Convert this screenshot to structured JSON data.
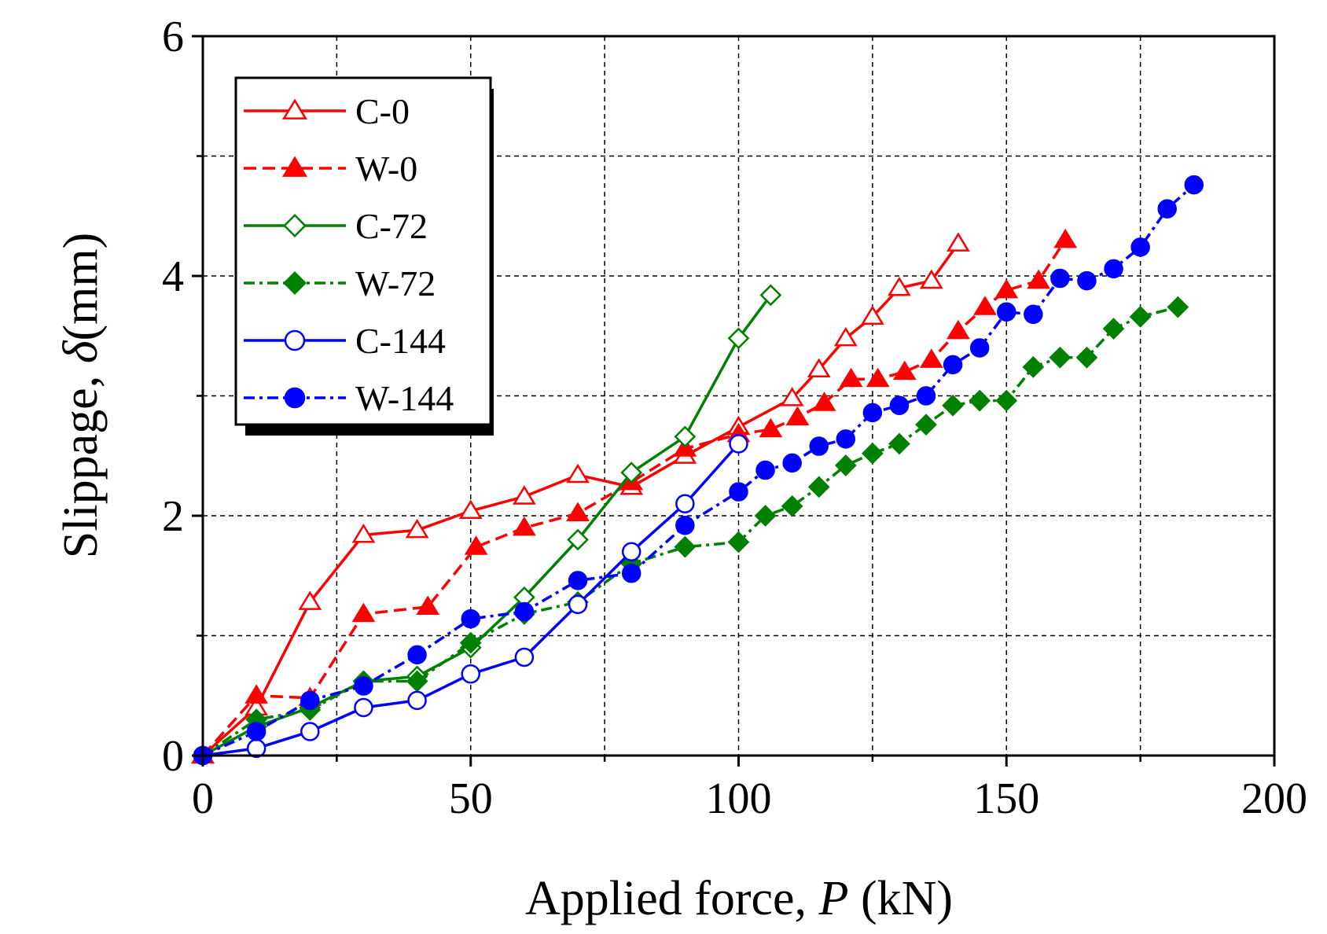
{
  "chart_data": {
    "type": "line",
    "xlabel_prefix": "Applied force, ",
    "xlabel_var": "P",
    "xlabel_unit": " (kN)",
    "ylabel_prefix": "Slippage, ",
    "ylabel_var": "δ",
    "ylabel_unit": "(mm)",
    "xlim": [
      0,
      200
    ],
    "ylim": [
      0,
      6
    ],
    "xticks": [
      0,
      50,
      100,
      150,
      200
    ],
    "yticks": [
      0,
      2,
      4,
      6
    ],
    "xminor": [
      25,
      75,
      125,
      175
    ],
    "yminor": [
      1,
      3,
      5
    ],
    "grid": true,
    "legend_position": "top-left",
    "series": [
      {
        "name": "C-0",
        "color": "#ff0000",
        "marker": "triangle",
        "filled": false,
        "dash": "solid",
        "x": [
          0,
          10,
          20,
          30,
          40,
          50,
          60,
          70,
          80,
          90,
          100,
          110,
          115,
          120,
          125,
          130,
          136,
          141
        ],
        "y": [
          0,
          0.4,
          1.28,
          1.84,
          1.88,
          2.04,
          2.16,
          2.34,
          2.24,
          2.5,
          2.74,
          2.98,
          3.22,
          3.48,
          3.66,
          3.9,
          3.96,
          4.27
        ]
      },
      {
        "name": "W-0",
        "color": "#ff0000",
        "marker": "triangle",
        "filled": true,
        "dash": "dash",
        "x": [
          0,
          10,
          20,
          30,
          42,
          51,
          60,
          70,
          80,
          90,
          100,
          106,
          111,
          116,
          121,
          126,
          131,
          136,
          141,
          146,
          150,
          156,
          161
        ],
        "y": [
          0,
          0.5,
          0.48,
          1.18,
          1.24,
          1.74,
          1.9,
          2.02,
          2.28,
          2.56,
          2.68,
          2.72,
          2.82,
          2.94,
          3.14,
          3.14,
          3.2,
          3.3,
          3.54,
          3.74,
          3.88,
          3.96,
          4.3
        ]
      },
      {
        "name": "C-72",
        "color": "#008000",
        "marker": "diamond",
        "filled": false,
        "dash": "solid",
        "x": [
          0,
          10,
          20,
          30,
          40,
          50,
          60,
          70,
          80,
          90,
          100,
          106
        ],
        "y": [
          0,
          0.24,
          0.4,
          0.62,
          0.66,
          0.9,
          1.32,
          1.8,
          2.36,
          2.66,
          3.48,
          3.84
        ]
      },
      {
        "name": "W-72",
        "color": "#008000",
        "marker": "diamond",
        "filled": true,
        "dash": "dashdot",
        "x": [
          0,
          10,
          20,
          30,
          40,
          50,
          60,
          70,
          80,
          90,
          100,
          105,
          110,
          115,
          120,
          125,
          130,
          135,
          140,
          145,
          150,
          155,
          160,
          165,
          170,
          175,
          182
        ],
        "y": [
          0,
          0.3,
          0.38,
          0.62,
          0.62,
          0.94,
          1.18,
          1.28,
          1.6,
          1.74,
          1.78,
          2.0,
          2.08,
          2.24,
          2.42,
          2.52,
          2.6,
          2.76,
          2.92,
          2.96,
          2.96,
          3.24,
          3.32,
          3.32,
          3.56,
          3.66,
          3.74
        ]
      },
      {
        "name": "C-144",
        "color": "#0000ff",
        "marker": "circle",
        "filled": false,
        "dash": "solid",
        "x": [
          0,
          10,
          20,
          30,
          40,
          50,
          60,
          70,
          80,
          90,
          100
        ],
        "y": [
          0,
          0.06,
          0.2,
          0.4,
          0.46,
          0.68,
          0.82,
          1.26,
          1.7,
          2.1,
          2.6
        ]
      },
      {
        "name": "W-144",
        "color": "#0000ff",
        "marker": "circle",
        "filled": true,
        "dash": "dashdot",
        "x": [
          0,
          10,
          20,
          30,
          40,
          50,
          60,
          70,
          80,
          90,
          100,
          105,
          110,
          115,
          120,
          125,
          130,
          135,
          140,
          145,
          150,
          155,
          160,
          165,
          170,
          175,
          180,
          185
        ],
        "y": [
          0,
          0.2,
          0.46,
          0.58,
          0.84,
          1.14,
          1.2,
          1.46,
          1.52,
          1.92,
          2.2,
          2.38,
          2.44,
          2.58,
          2.64,
          2.86,
          2.92,
          3.0,
          3.26,
          3.4,
          3.7,
          3.68,
          3.98,
          3.96,
          4.06,
          4.24,
          4.56,
          4.76
        ]
      }
    ]
  }
}
